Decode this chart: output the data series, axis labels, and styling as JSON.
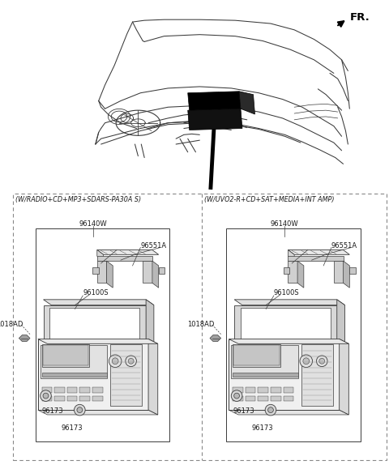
{
  "bg_color": "#ffffff",
  "fig_width": 4.8,
  "fig_height": 5.79,
  "dpi": 100,
  "fr_label": "FR.",
  "section1_title": "(W/RADIO+CD+MP3+SDARS-PA30A S)",
  "section2_title": "(W/UVO2-R+CD+SAT+MEDIA+INT AMP)",
  "lc": "#3a3a3a",
  "tc": "#1a1a1a",
  "odc": "#888888",
  "idc": "#666666",
  "fs_label": 6.0,
  "fs_title": 5.8,
  "fs_fr": 9.5
}
